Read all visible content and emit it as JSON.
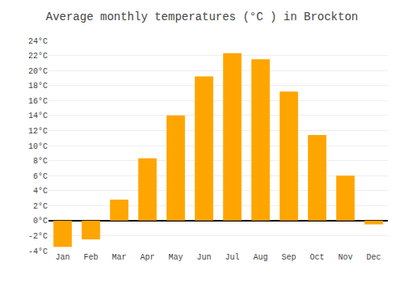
{
  "chart_data": {
    "type": "bar",
    "title": "Average monthly temperatures (°C ) in Brockton",
    "categories": [
      "Jan",
      "Feb",
      "Mar",
      "Apr",
      "May",
      "Jun",
      "Jul",
      "Aug",
      "Sep",
      "Oct",
      "Nov",
      "Dec"
    ],
    "values": [
      -3.5,
      -2.5,
      2.8,
      8.3,
      14.0,
      19.2,
      22.3,
      21.5,
      17.2,
      11.4,
      6.0,
      -0.5
    ],
    "color": "#FFA500",
    "ylim": [
      -4,
      24
    ],
    "yticks": [
      {
        "value": -4,
        "label": "-4°C"
      },
      {
        "value": -2,
        "label": "-2°C"
      },
      {
        "value": 0,
        "label": "0°C"
      },
      {
        "value": 2,
        "label": "2°C"
      },
      {
        "value": 4,
        "label": "4°C"
      },
      {
        "value": 6,
        "label": "6°C"
      },
      {
        "value": 8,
        "label": "8°C"
      },
      {
        "value": 10,
        "label": "10°C"
      },
      {
        "value": 12,
        "label": "12°C"
      },
      {
        "value": 14,
        "label": "14°C"
      },
      {
        "value": 16,
        "label": "16°C"
      },
      {
        "value": 18,
        "label": "18°C"
      },
      {
        "value": 20,
        "label": "20°C"
      },
      {
        "value": 22,
        "label": "22°C"
      },
      {
        "value": 24,
        "label": "24°C"
      }
    ],
    "grid": true
  }
}
